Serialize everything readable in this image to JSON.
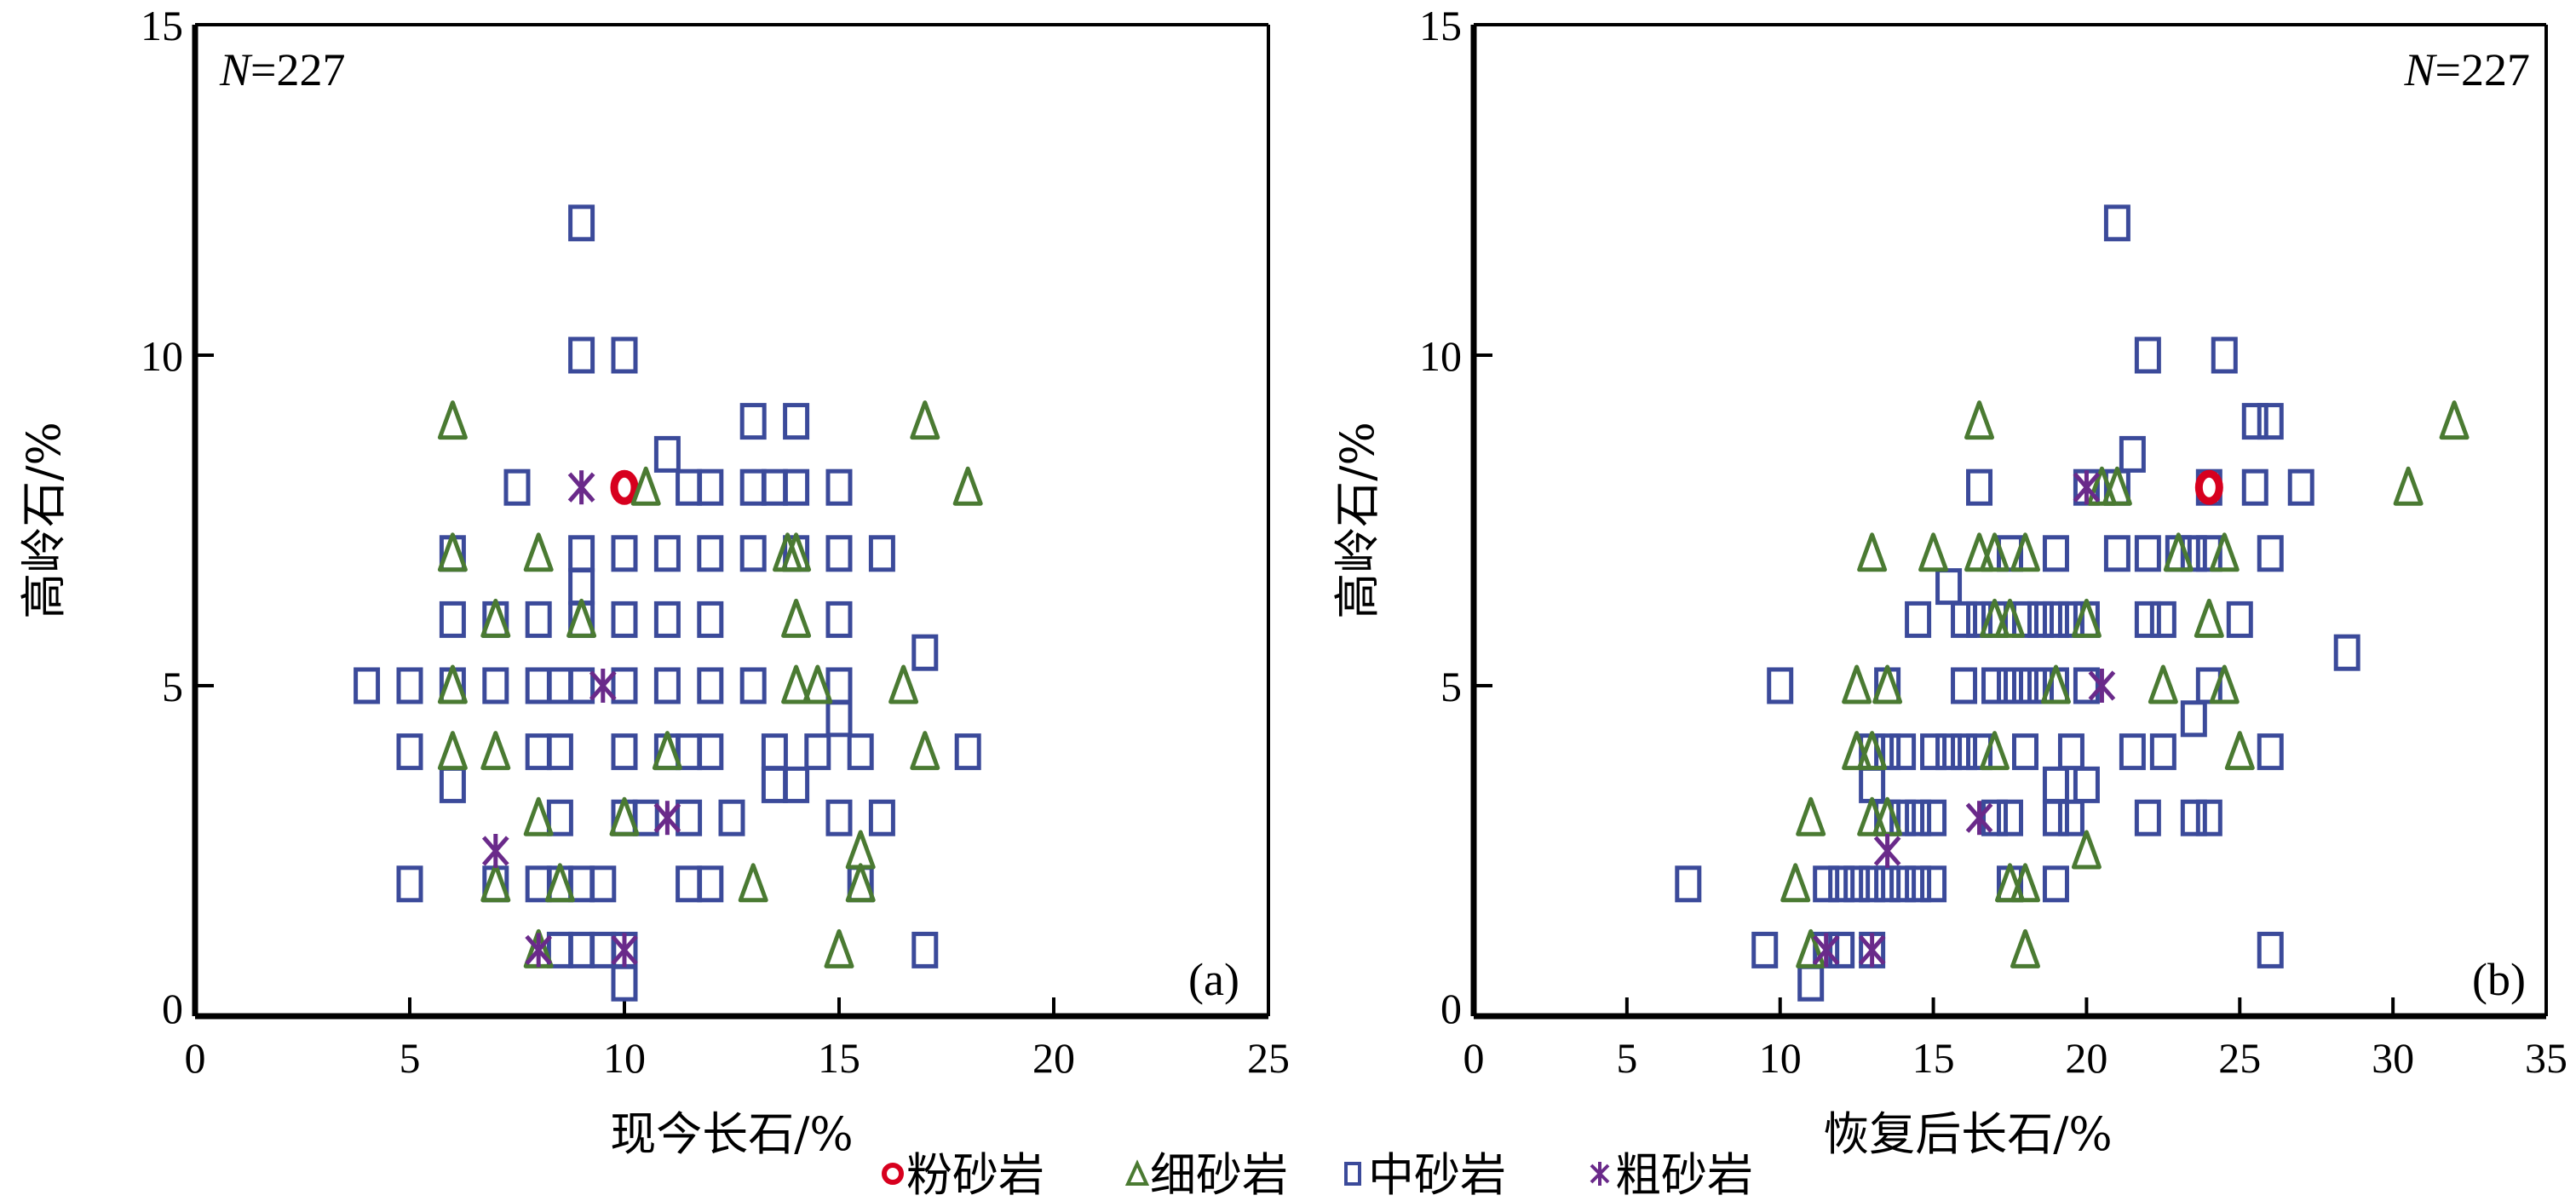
{
  "colors": {
    "silt": "#d7001e",
    "fine": "#4a7a32",
    "medium": "#3b4a9a",
    "coarse": "#6a2a8a"
  },
  "legend": {
    "items": [
      {
        "key": "silt",
        "label": "粉砂岩",
        "marker": "circle"
      },
      {
        "key": "fine",
        "label": "细砂岩",
        "marker": "triangle"
      },
      {
        "key": "medium",
        "label": "中砂岩",
        "marker": "square"
      },
      {
        "key": "coarse",
        "label": "粗砂岩",
        "marker": "asterisk"
      }
    ]
  },
  "chart_data": [
    {
      "type": "scatter",
      "panel": "(a)",
      "annotation": "N=227",
      "annotation_n": "N",
      "annotation_rest": "=227",
      "xlabel": "现今长石/%",
      "ylabel": "高岭石/%",
      "xlim": [
        0,
        25
      ],
      "ylim": [
        0,
        15
      ],
      "xticks": [
        "0",
        "5",
        "10",
        "15",
        "20",
        "25"
      ],
      "yticks": [
        "0",
        "5",
        "10",
        "15"
      ],
      "series": [
        {
          "name": "粉砂岩",
          "key": "silt",
          "points": [
            [
              10,
              8
            ]
          ]
        },
        {
          "name": "细砂岩",
          "key": "fine",
          "points": [
            [
              6,
              9
            ],
            [
              17,
              9
            ],
            [
              10.5,
              8
            ],
            [
              18,
              8
            ],
            [
              6,
              7
            ],
            [
              8,
              7
            ],
            [
              13.8,
              7
            ],
            [
              14,
              7
            ],
            [
              7,
              6
            ],
            [
              9,
              6
            ],
            [
              14,
              6
            ],
            [
              6,
              5
            ],
            [
              14,
              5
            ],
            [
              14.5,
              5
            ],
            [
              16.5,
              5
            ],
            [
              6,
              4
            ],
            [
              7,
              4
            ],
            [
              11,
              4
            ],
            [
              17,
              4
            ],
            [
              8,
              3
            ],
            [
              10,
              3
            ],
            [
              15.5,
              2.5
            ],
            [
              7,
              2
            ],
            [
              8.5,
              2
            ],
            [
              13,
              2
            ],
            [
              15.5,
              2
            ],
            [
              8,
              1
            ],
            [
              15,
              1
            ]
          ]
        },
        {
          "name": "中砂岩",
          "key": "medium",
          "points": [
            [
              9,
              12
            ],
            [
              9,
              10
            ],
            [
              10,
              10
            ],
            [
              13,
              9
            ],
            [
              14,
              9
            ],
            [
              11,
              8.5
            ],
            [
              7.5,
              8
            ],
            [
              11.5,
              8
            ],
            [
              12,
              8
            ],
            [
              13,
              8
            ],
            [
              13.5,
              8
            ],
            [
              14,
              8
            ],
            [
              15,
              8
            ],
            [
              6,
              7
            ],
            [
              9,
              7
            ],
            [
              10,
              7
            ],
            [
              11,
              7
            ],
            [
              12,
              7
            ],
            [
              13,
              7
            ],
            [
              14,
              7
            ],
            [
              15,
              7
            ],
            [
              16,
              7
            ],
            [
              9,
              6.5
            ],
            [
              6,
              6
            ],
            [
              7,
              6
            ],
            [
              8,
              6
            ],
            [
              9,
              6
            ],
            [
              10,
              6
            ],
            [
              11,
              6
            ],
            [
              12,
              6
            ],
            [
              15,
              6
            ],
            [
              17,
              5.5
            ],
            [
              4,
              5
            ],
            [
              5,
              5
            ],
            [
              6,
              5
            ],
            [
              7,
              5
            ],
            [
              8,
              5
            ],
            [
              8.5,
              5
            ],
            [
              9,
              5
            ],
            [
              10,
              5
            ],
            [
              11,
              5
            ],
            [
              12,
              5
            ],
            [
              13,
              5
            ],
            [
              15,
              5
            ],
            [
              15,
              4.5
            ],
            [
              5,
              4
            ],
            [
              8,
              4
            ],
            [
              8.5,
              4
            ],
            [
              10,
              4
            ],
            [
              11,
              4
            ],
            [
              11.5,
              4
            ],
            [
              12,
              4
            ],
            [
              13.5,
              4
            ],
            [
              14.5,
              4
            ],
            [
              15.5,
              4
            ],
            [
              18,
              4
            ],
            [
              6,
              3.5
            ],
            [
              13.5,
              3.5
            ],
            [
              14,
              3.5
            ],
            [
              8.5,
              3
            ],
            [
              10,
              3
            ],
            [
              10.5,
              3
            ],
            [
              11.5,
              3
            ],
            [
              12.5,
              3
            ],
            [
              15,
              3
            ],
            [
              16,
              3
            ],
            [
              5,
              2
            ],
            [
              7,
              2
            ],
            [
              8,
              2
            ],
            [
              8.5,
              2
            ],
            [
              9,
              2
            ],
            [
              9.5,
              2
            ],
            [
              11.5,
              2
            ],
            [
              12,
              2
            ],
            [
              15.5,
              2
            ],
            [
              8.5,
              1
            ],
            [
              9,
              1
            ],
            [
              9.5,
              1
            ],
            [
              10,
              1
            ],
            [
              17,
              1
            ],
            [
              10,
              0.5
            ]
          ]
        },
        {
          "name": "粗砂岩",
          "key": "coarse",
          "points": [
            [
              9,
              8
            ],
            [
              9.5,
              5
            ],
            [
              11,
              3
            ],
            [
              7,
              2.5
            ],
            [
              8,
              1
            ],
            [
              10,
              1
            ]
          ]
        }
      ]
    },
    {
      "type": "scatter",
      "panel": "(b)",
      "annotation": "N=227",
      "annotation_n": "N",
      "annotation_rest": "=227",
      "xlabel": "恢复后长石/%",
      "ylabel": "高岭石/%",
      "xlim": [
        0,
        35
      ],
      "ylim": [
        0,
        15
      ],
      "xticks": [
        "0",
        "5",
        "10",
        "15",
        "20",
        "25",
        "30",
        "35"
      ],
      "yticks": [
        "0",
        "5",
        "10",
        "15"
      ],
      "series": [
        {
          "name": "粉砂岩",
          "key": "silt",
          "points": [
            [
              24,
              8
            ]
          ]
        },
        {
          "name": "细砂岩",
          "key": "fine",
          "points": [
            [
              16.5,
              9
            ],
            [
              32,
              9
            ],
            [
              20.5,
              8
            ],
            [
              21,
              8
            ],
            [
              30.5,
              8
            ],
            [
              13,
              7
            ],
            [
              15,
              7
            ],
            [
              16.5,
              7
            ],
            [
              17,
              7
            ],
            [
              18,
              7
            ],
            [
              23,
              7
            ],
            [
              24.5,
              7
            ],
            [
              17,
              6
            ],
            [
              17.5,
              6
            ],
            [
              20,
              6
            ],
            [
              24,
              6
            ],
            [
              12.5,
              5
            ],
            [
              13.5,
              5
            ],
            [
              19,
              5
            ],
            [
              22.5,
              5
            ],
            [
              24.5,
              5
            ],
            [
              12.5,
              4
            ],
            [
              13,
              4
            ],
            [
              17,
              4
            ],
            [
              25,
              4
            ],
            [
              11,
              3
            ],
            [
              13,
              3
            ],
            [
              13.5,
              3
            ],
            [
              20,
              2.5
            ],
            [
              10.5,
              2
            ],
            [
              17.5,
              2
            ],
            [
              18,
              2
            ],
            [
              11,
              1
            ],
            [
              18,
              1
            ]
          ]
        },
        {
          "name": "中砂岩",
          "key": "medium",
          "points": [
            [
              21,
              12
            ],
            [
              22,
              10
            ],
            [
              24.5,
              10
            ],
            [
              25.5,
              9
            ],
            [
              26,
              9
            ],
            [
              21.5,
              8.5
            ],
            [
              16.5,
              8
            ],
            [
              20,
              8
            ],
            [
              21,
              8
            ],
            [
              24,
              8
            ],
            [
              25.5,
              8
            ],
            [
              27,
              8
            ],
            [
              17.5,
              7
            ],
            [
              19,
              7
            ],
            [
              21,
              7
            ],
            [
              22,
              7
            ],
            [
              23,
              7
            ],
            [
              23.5,
              7
            ],
            [
              24,
              7
            ],
            [
              26,
              7
            ],
            [
              15.5,
              6.5
            ],
            [
              14.5,
              6
            ],
            [
              16,
              6
            ],
            [
              16.5,
              6
            ],
            [
              17,
              6
            ],
            [
              18,
              6
            ],
            [
              18.5,
              6
            ],
            [
              19,
              6
            ],
            [
              19.5,
              6
            ],
            [
              20,
              6
            ],
            [
              22,
              6
            ],
            [
              22.5,
              6
            ],
            [
              25,
              6
            ],
            [
              28.5,
              5.5
            ],
            [
              10,
              5
            ],
            [
              13.5,
              5
            ],
            [
              16,
              5
            ],
            [
              17,
              5
            ],
            [
              17.5,
              5
            ],
            [
              18,
              5
            ],
            [
              18.5,
              5
            ],
            [
              19,
              5
            ],
            [
              20,
              5
            ],
            [
              24,
              5
            ],
            [
              23.5,
              4.5
            ],
            [
              13,
              4
            ],
            [
              13.5,
              4
            ],
            [
              14,
              4
            ],
            [
              15,
              4
            ],
            [
              15.5,
              4
            ],
            [
              16,
              4
            ],
            [
              16.5,
              4
            ],
            [
              18,
              4
            ],
            [
              19.5,
              4
            ],
            [
              21.5,
              4
            ],
            [
              22.5,
              4
            ],
            [
              26,
              4
            ],
            [
              13,
              3.5
            ],
            [
              19,
              3.5
            ],
            [
              20,
              3.5
            ],
            [
              13.5,
              3
            ],
            [
              14,
              3
            ],
            [
              14.5,
              3
            ],
            [
              15,
              3
            ],
            [
              17,
              3
            ],
            [
              17.5,
              3
            ],
            [
              19,
              3
            ],
            [
              19.5,
              3
            ],
            [
              22,
              3
            ],
            [
              23.5,
              3
            ],
            [
              24,
              3
            ],
            [
              7,
              2
            ],
            [
              11.5,
              2
            ],
            [
              12,
              2
            ],
            [
              12.5,
              2
            ],
            [
              13,
              2
            ],
            [
              13.5,
              2
            ],
            [
              14,
              2
            ],
            [
              14.5,
              2
            ],
            [
              15,
              2
            ],
            [
              17.5,
              2
            ],
            [
              19,
              2
            ],
            [
              9.5,
              1
            ],
            [
              11.5,
              1
            ],
            [
              12,
              1
            ],
            [
              13,
              1
            ],
            [
              26,
              1
            ],
            [
              11,
              0.5
            ]
          ]
        },
        {
          "name": "粗砂岩",
          "key": "coarse",
          "points": [
            [
              20,
              8
            ],
            [
              20.5,
              5
            ],
            [
              16.5,
              3
            ],
            [
              13.5,
              2.5
            ],
            [
              11.5,
              1
            ],
            [
              13,
              1
            ]
          ]
        }
      ]
    }
  ]
}
